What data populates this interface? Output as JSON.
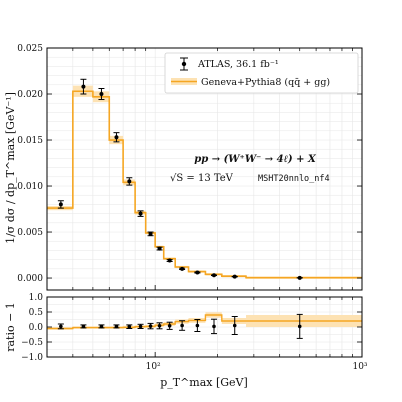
{
  "chart_data": [
    {
      "type": "line",
      "panel": "main",
      "ylabel": "1/σ dσ / dp_T^max  [GeV⁻¹]",
      "ylim": [
        -0.0013,
        0.025
      ],
      "yticks": [
        "0.000",
        "0.005",
        "0.010",
        "0.015",
        "0.020",
        "0.025"
      ],
      "x_scale": "log",
      "xlim": [
        30,
        1000
      ],
      "grid": true,
      "legend_position": "top-right",
      "annotation_process": "pp → (W⁺W⁻ → 4ℓ) + X",
      "annotation_energy": "√S = 13 TeV",
      "annotation_pdf": "MSHT20nnlo_nf4",
      "series": [
        {
          "name": "ATLAS, 36.1 fb⁻¹",
          "style": "points with error bars",
          "color": "#000000",
          "points": [
            {
              "x": 35,
              "y": 0.008,
              "err": 0.0004
            },
            {
              "x": 45,
              "y": 0.0208,
              "err": 0.0008
            },
            {
              "x": 55,
              "y": 0.02,
              "err": 0.0006
            },
            {
              "x": 65,
              "y": 0.0153,
              "err": 0.0005
            },
            {
              "x": 75,
              "y": 0.0105,
              "err": 0.0004
            },
            {
              "x": 85,
              "y": 0.007,
              "err": 0.0003
            },
            {
              "x": 95,
              "y": 0.0048,
              "err": 0.0002
            },
            {
              "x": 105,
              "y": 0.0032,
              "err": 0.00015
            },
            {
              "x": 117.5,
              "y": 0.0019,
              "err": 0.0001
            },
            {
              "x": 135,
              "y": 0.001,
              "err": 7e-05
            },
            {
              "x": 160,
              "y": 0.0006,
              "err": 5e-05
            },
            {
              "x": 192.5,
              "y": 0.0003,
              "err": 3e-05
            },
            {
              "x": 242.5,
              "y": 0.00015,
              "err": 2e-05
            },
            {
              "x": 500,
              "y": 2e-05,
              "err": 5e-06
            }
          ]
        },
        {
          "name": "Geneva+Pythia8 (qq̄ + gg)",
          "style": "step histogram with band",
          "color": "#f5a623",
          "bins": [
            {
              "lo": 30,
              "hi": 40,
              "y": 0.0076
            },
            {
              "lo": 40,
              "hi": 50,
              "y": 0.0203
            },
            {
              "lo": 50,
              "hi": 60,
              "y": 0.0197
            },
            {
              "lo": 60,
              "hi": 70,
              "y": 0.015
            },
            {
              "lo": 70,
              "hi": 80,
              "y": 0.0104
            },
            {
              "lo": 80,
              "hi": 90,
              "y": 0.0071
            },
            {
              "lo": 90,
              "hi": 100,
              "y": 0.0049
            },
            {
              "lo": 100,
              "hi": 110,
              "y": 0.0034
            },
            {
              "lo": 110,
              "hi": 125,
              "y": 0.0021
            },
            {
              "lo": 125,
              "hi": 145,
              "y": 0.0012
            },
            {
              "lo": 145,
              "hi": 175,
              "y": 0.0007
            },
            {
              "lo": 175,
              "hi": 210,
              "y": 0.0004
            },
            {
              "lo": 210,
              "hi": 275,
              "y": 0.0002
            },
            {
              "lo": 275,
              "hi": 1000,
              "y": 4e-05
            }
          ]
        }
      ]
    },
    {
      "type": "line",
      "panel": "ratio",
      "ylabel": "ratio − 1",
      "xlabel": "p_T^max  [GeV]",
      "ylim": [
        -1.0,
        1.0
      ],
      "yticks": [
        "−1.0",
        "−0.5",
        "0.0",
        "0.5",
        "1.0"
      ],
      "x_scale": "log",
      "xlim": [
        30,
        1000
      ],
      "xticks": [
        {
          "value": 100,
          "label": "10²"
        },
        {
          "value": 1000,
          "label": "10³"
        }
      ],
      "grid": true,
      "series": [
        {
          "name": "ATLAS, 36.1 fb⁻¹",
          "points": [
            {
              "x": 35,
              "y": 0.02,
              "err": 0.08
            },
            {
              "x": 45,
              "y": 0.02,
              "err": 0.05
            },
            {
              "x": 55,
              "y": 0.02,
              "err": 0.05
            },
            {
              "x": 65,
              "y": 0.02,
              "err": 0.05
            },
            {
              "x": 75,
              "y": 0.01,
              "err": 0.06
            },
            {
              "x": 85,
              "y": 0.02,
              "err": 0.07
            },
            {
              "x": 95,
              "y": 0.03,
              "err": 0.09
            },
            {
              "x": 105,
              "y": 0.04,
              "err": 0.1
            },
            {
              "x": 117.5,
              "y": 0.04,
              "err": 0.12
            },
            {
              "x": 135,
              "y": 0.05,
              "err": 0.16
            },
            {
              "x": 160,
              "y": 0.05,
              "err": 0.2
            },
            {
              "x": 192.5,
              "y": 0.02,
              "err": 0.24
            },
            {
              "x": 242.5,
              "y": 0.05,
              "err": 0.3
            },
            {
              "x": 500,
              "y": 0.02,
              "err": 0.4
            }
          ]
        },
        {
          "name": "Geneva+Pythia8 (qq̄ + gg)",
          "bins": [
            {
              "lo": 30,
              "hi": 40,
              "y": -0.05,
              "band": 0.04
            },
            {
              "lo": 40,
              "hi": 50,
              "y": -0.02,
              "band": 0.04
            },
            {
              "lo": 50,
              "hi": 60,
              "y": -0.02,
              "band": 0.04
            },
            {
              "lo": 60,
              "hi": 70,
              "y": -0.02,
              "band": 0.04
            },
            {
              "lo": 70,
              "hi": 80,
              "y": -0.01,
              "band": 0.05
            },
            {
              "lo": 80,
              "hi": 90,
              "y": 0.01,
              "band": 0.05
            },
            {
              "lo": 90,
              "hi": 100,
              "y": 0.02,
              "band": 0.05
            },
            {
              "lo": 100,
              "hi": 110,
              "y": 0.06,
              "band": 0.06
            },
            {
              "lo": 110,
              "hi": 125,
              "y": 0.1,
              "band": 0.06
            },
            {
              "lo": 125,
              "hi": 145,
              "y": 0.18,
              "band": 0.07
            },
            {
              "lo": 145,
              "hi": 175,
              "y": 0.22,
              "band": 0.08
            },
            {
              "lo": 175,
              "hi": 210,
              "y": 0.4,
              "band": 0.09
            },
            {
              "lo": 210,
              "hi": 275,
              "y": 0.2,
              "band": 0.1
            },
            {
              "lo": 275,
              "hi": 1000,
              "y": 0.2,
              "band": 0.2
            }
          ]
        }
      ]
    }
  ],
  "colors": {
    "theory": "#f5a623",
    "band": "#fde2b3",
    "data": "#000000",
    "grid": "#e6e6e6"
  }
}
